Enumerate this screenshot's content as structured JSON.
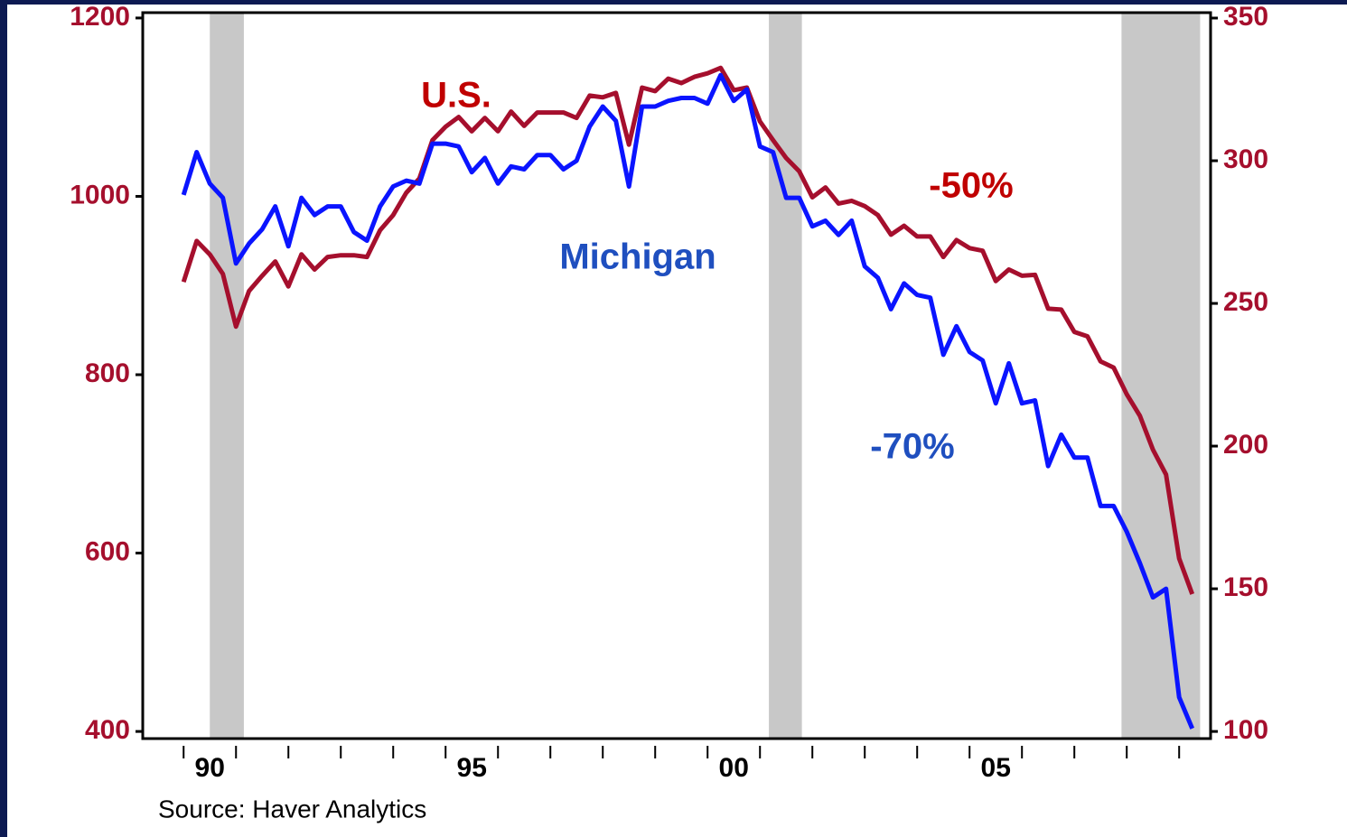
{
  "chart_data": {
    "type": "line",
    "source": "Source: Haver Analytics",
    "x": [
      1990,
      1990.25,
      1990.5,
      1990.75,
      1991,
      1991.25,
      1991.5,
      1991.75,
      1992,
      1992.25,
      1992.5,
      1992.75,
      1993,
      1993.25,
      1993.5,
      1993.75,
      1994,
      1994.25,
      1994.5,
      1994.75,
      1995,
      1995.25,
      1995.5,
      1995.75,
      1996,
      1996.25,
      1996.5,
      1996.75,
      1997,
      1997.25,
      1997.5,
      1997.75,
      1998,
      1998.25,
      1998.5,
      1998.75,
      1999,
      1999.25,
      1999.5,
      1999.75,
      2000,
      2000.25,
      2000.5,
      2000.75,
      2001,
      2001.25,
      2001.5,
      2001.75,
      2002,
      2002.25,
      2002.5,
      2002.75,
      2003,
      2003.25,
      2003.5,
      2003.75,
      2004,
      2004.25,
      2004.5,
      2004.75,
      2005,
      2005.25,
      2005.5,
      2005.75,
      2006,
      2006.25,
      2006.5,
      2006.75,
      2007,
      2007.25,
      2007.5,
      2007.75,
      2008,
      2008.25,
      2008.5,
      2008.75,
      2009,
      2009.25
    ],
    "series": [
      {
        "name": "U.S.",
        "color": "#a50f2d",
        "axis": "y",
        "values": [
          904,
          950,
          935,
          913,
          854,
          894,
          911,
          927,
          899,
          935,
          918,
          932,
          934,
          934,
          932,
          962,
          979,
          1004,
          1020,
          1063,
          1078,
          1089,
          1073,
          1088,
          1073,
          1095,
          1079,
          1094,
          1094,
          1094,
          1088,
          1113,
          1111,
          1116,
          1058,
          1122,
          1118,
          1132,
          1127,
          1134,
          1138,
          1144,
          1119,
          1122,
          1084,
          1063,
          1043,
          1028,
          999,
          1010,
          992,
          995,
          989,
          979,
          957,
          967,
          955,
          955,
          932,
          951,
          942,
          939,
          905,
          918,
          911,
          912,
          874,
          873,
          848,
          843,
          815,
          808,
          778,
          754,
          716,
          688,
          594,
          554
        ]
      },
      {
        "name": "Michigan",
        "color": "#0a14ff",
        "axis": "y2",
        "values": [
          288,
          303,
          292,
          287,
          264,
          271,
          276,
          284,
          270,
          287,
          281,
          284,
          284,
          275,
          272,
          284,
          291,
          293,
          292,
          306,
          306,
          305,
          296,
          301,
          292,
          298,
          297,
          302,
          302,
          297,
          300,
          312,
          319,
          314,
          291,
          319,
          319,
          321,
          322,
          322,
          320,
          330,
          321,
          325,
          305,
          303,
          287,
          287,
          277,
          279,
          274,
          279,
          263,
          259,
          248,
          257,
          253,
          252,
          232,
          242,
          233,
          230,
          215,
          229,
          215,
          216,
          193,
          204,
          196,
          196,
          179,
          179,
          170,
          159,
          147,
          150,
          112,
          101
        ]
      }
    ],
    "annotations": [
      {
        "text": "U.S.",
        "color": "#c00000"
      },
      {
        "text": "Michigan",
        "color": "#1f4fbf"
      },
      {
        "text": "-50%",
        "color": "#c00000"
      },
      {
        "text": "-70%",
        "color": "#1f4fbf"
      }
    ],
    "shaded_periods": [
      [
        1990.5,
        1991.15
      ],
      [
        2001.17,
        2001.8
      ],
      [
        2007.9,
        2009.4
      ]
    ],
    "shade_color": "#c8c8c8",
    "tick_label_color": "#a50f2d",
    "xlim": [
      1989.22,
      2009.6
    ],
    "xticks": [
      {
        "value": 1990,
        "label": "90"
      },
      1991,
      1992,
      1993,
      1994,
      {
        "value": 1995,
        "label": "95"
      },
      1996,
      1997,
      1998,
      1999,
      {
        "value": 2000,
        "label": "00"
      },
      2001,
      2002,
      2003,
      2004,
      {
        "value": 2005,
        "label": "05"
      },
      2006,
      2007,
      2008,
      2009
    ],
    "ylim": [
      392,
      1206
    ],
    "yticks": [
      400,
      600,
      800,
      1000,
      1200
    ],
    "y2lim": [
      97.5,
      351.9
    ],
    "y2ticks": [
      100,
      150,
      200,
      250,
      300,
      350
    ]
  }
}
